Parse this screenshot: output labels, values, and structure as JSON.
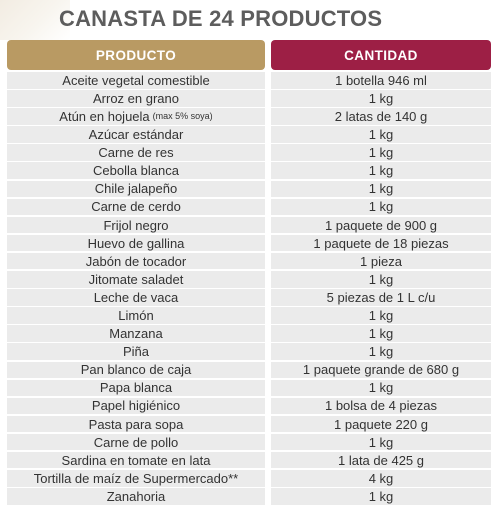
{
  "title": "CANASTA DE 24 PRODUCTOS",
  "colors": {
    "product_header": "#b99a63",
    "quantity_header": "#9d1f45",
    "row_background": "#ebebeb",
    "title_text": "#5d5d5d"
  },
  "headers": {
    "product": "PRODUCTO",
    "quantity": "CANTIDAD"
  },
  "rows": [
    {
      "product": "Aceite vegetal comestible",
      "quantity": "1 botella 946 ml"
    },
    {
      "product": "Arroz en grano",
      "quantity": "1 kg"
    },
    {
      "product": "Atún en hojuela",
      "note": "(max 5% soya)",
      "quantity": "2 latas de 140 g"
    },
    {
      "product": "Azúcar estándar",
      "quantity": "1 kg"
    },
    {
      "product": "Carne de res",
      "quantity": "1 kg"
    },
    {
      "product": "Cebolla blanca",
      "quantity": "1 kg"
    },
    {
      "product": "Chile jalapeño",
      "quantity": "1 kg"
    },
    {
      "product": "Carne de cerdo",
      "quantity": "1 kg"
    },
    {
      "product": "Frijol negro",
      "quantity": "1 paquete de 900 g"
    },
    {
      "product": "Huevo de gallina",
      "quantity": "1 paquete de 18 piezas"
    },
    {
      "product": "Jabón de tocador",
      "quantity": "1 pieza"
    },
    {
      "product": "Jitomate saladet",
      "quantity": "1 kg"
    },
    {
      "product": "Leche de vaca",
      "quantity": "5 piezas de 1 L c/u"
    },
    {
      "product": "Limón",
      "quantity": "1 kg"
    },
    {
      "product": "Manzana",
      "quantity": "1 kg"
    },
    {
      "product": "Piña",
      "quantity": "1 kg"
    },
    {
      "product": "Pan blanco de caja",
      "quantity": "1 paquete grande de 680 g"
    },
    {
      "product": "Papa blanca",
      "quantity": "1 kg"
    },
    {
      "product": "Papel higiénico",
      "quantity": "1 bolsa de 4 piezas"
    },
    {
      "product": "Pasta para sopa",
      "quantity": "1 paquete 220 g"
    },
    {
      "product": "Carne de pollo",
      "quantity": "1 kg"
    },
    {
      "product": "Sardina en tomate en lata",
      "quantity": "1 lata de 425 g"
    },
    {
      "product": "Tortilla de maíz de Supermercado**",
      "quantity": "4 kg"
    },
    {
      "product": "Zanahoria",
      "quantity": "1 kg"
    }
  ]
}
